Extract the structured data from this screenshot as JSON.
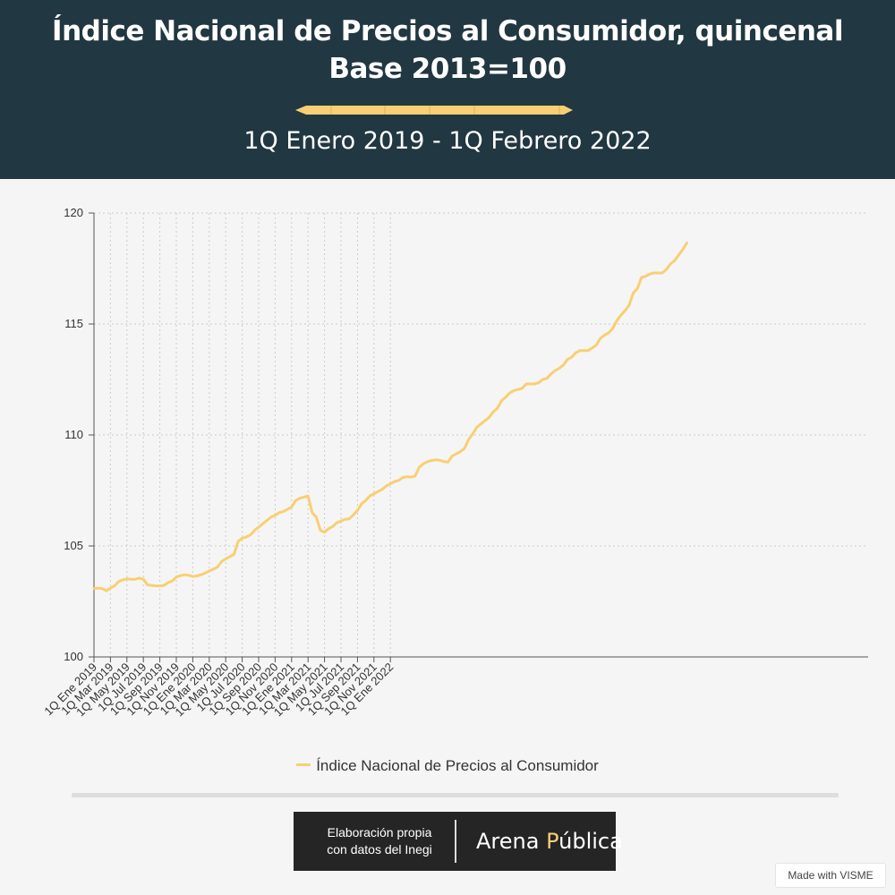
{
  "header": {
    "title_line1": "Índice Nacional de Precios al Consumidor, quincenal",
    "title_line2": "Base 2013=100",
    "subtitle": "1Q Enero 2019 - 1Q Febrero 2022"
  },
  "colors": {
    "header_bg": "#213741",
    "accent": "#f8cf73",
    "background": "#f5f5f5",
    "credit_bg": "#252525"
  },
  "chart_data": {
    "type": "line",
    "ylim": [
      100,
      120
    ],
    "y_ticks": [
      100,
      105,
      110,
      115,
      120
    ],
    "x_tick_labels": [
      "1Q Ene 2019",
      "1Q Mar 2019",
      "1Q May 2019",
      "1Q Jul 2019",
      "1Q Sep 2019",
      "1Q Nov 2019",
      "1Q Ene 2020",
      "1Q Mar 2020",
      "1Q May 2020",
      "1Q Jul 2020",
      "1Q Sep 2020",
      "1Q Nov 2020",
      "1Q Ene 2021",
      "1Q Mar 2021",
      "1Q May 2021",
      "1Q Jul 2021",
      "1Q Sep 2021",
      "1Q Nov 2021",
      "1Q Ene 2022"
    ],
    "x_tick_every": 4,
    "grid": true,
    "legend_position": "bottom-center",
    "series": [
      {
        "name": "Índice Nacional de Precios al Consumidor",
        "color": "#f8cf73",
        "values": [
          103.08,
          103.1,
          103.08,
          102.98,
          103.1,
          103.2,
          103.4,
          103.47,
          103.52,
          103.5,
          103.5,
          103.55,
          103.5,
          103.25,
          103.22,
          103.2,
          103.2,
          103.22,
          103.35,
          103.42,
          103.6,
          103.66,
          103.7,
          103.68,
          103.62,
          103.65,
          103.7,
          103.78,
          103.88,
          103.95,
          104.05,
          104.3,
          104.42,
          104.52,
          104.62,
          105.2,
          105.35,
          105.4,
          105.5,
          105.7,
          105.85,
          106.0,
          106.15,
          106.3,
          106.38,
          106.5,
          106.55,
          106.65,
          106.75,
          107.05,
          107.15,
          107.2,
          107.25,
          106.5,
          106.3,
          105.7,
          105.62,
          105.78,
          105.88,
          106.05,
          106.12,
          106.2,
          106.22,
          106.4,
          106.6,
          106.9,
          107.05,
          107.25,
          107.35,
          107.45,
          107.55,
          107.7,
          107.8,
          107.9,
          107.95,
          108.08,
          108.12,
          108.1,
          108.15,
          108.55,
          108.7,
          108.8,
          108.85,
          108.88,
          108.86,
          108.8,
          108.78,
          109.05,
          109.15,
          109.25,
          109.4,
          109.8,
          110.05,
          110.35,
          110.5,
          110.65,
          110.8,
          111.05,
          111.2,
          111.55,
          111.7,
          111.9,
          112.0,
          112.05,
          112.1,
          112.3,
          112.3,
          112.3,
          112.35,
          112.5,
          112.55,
          112.75,
          112.9,
          113.0,
          113.15,
          113.4,
          113.5,
          113.7,
          113.8,
          113.8,
          113.8,
          113.92,
          114.05,
          114.35,
          114.5,
          114.6,
          114.8,
          115.15,
          115.4,
          115.6,
          115.85,
          116.4,
          116.6,
          117.1,
          117.15,
          117.25,
          117.3,
          117.3,
          117.3,
          117.45,
          117.7,
          117.85,
          118.1,
          118.35,
          118.65
        ]
      }
    ]
  },
  "legend": {
    "label": "Índice Nacional de Precios al Consumidor"
  },
  "credit": {
    "line1": "Elaboración propia",
    "line2": "con datos del Inegi",
    "brand_part1": "Arena ",
    "brand_highlight1": "P",
    "brand_part2": "ública"
  },
  "badge": {
    "label": "Made with VISME"
  }
}
